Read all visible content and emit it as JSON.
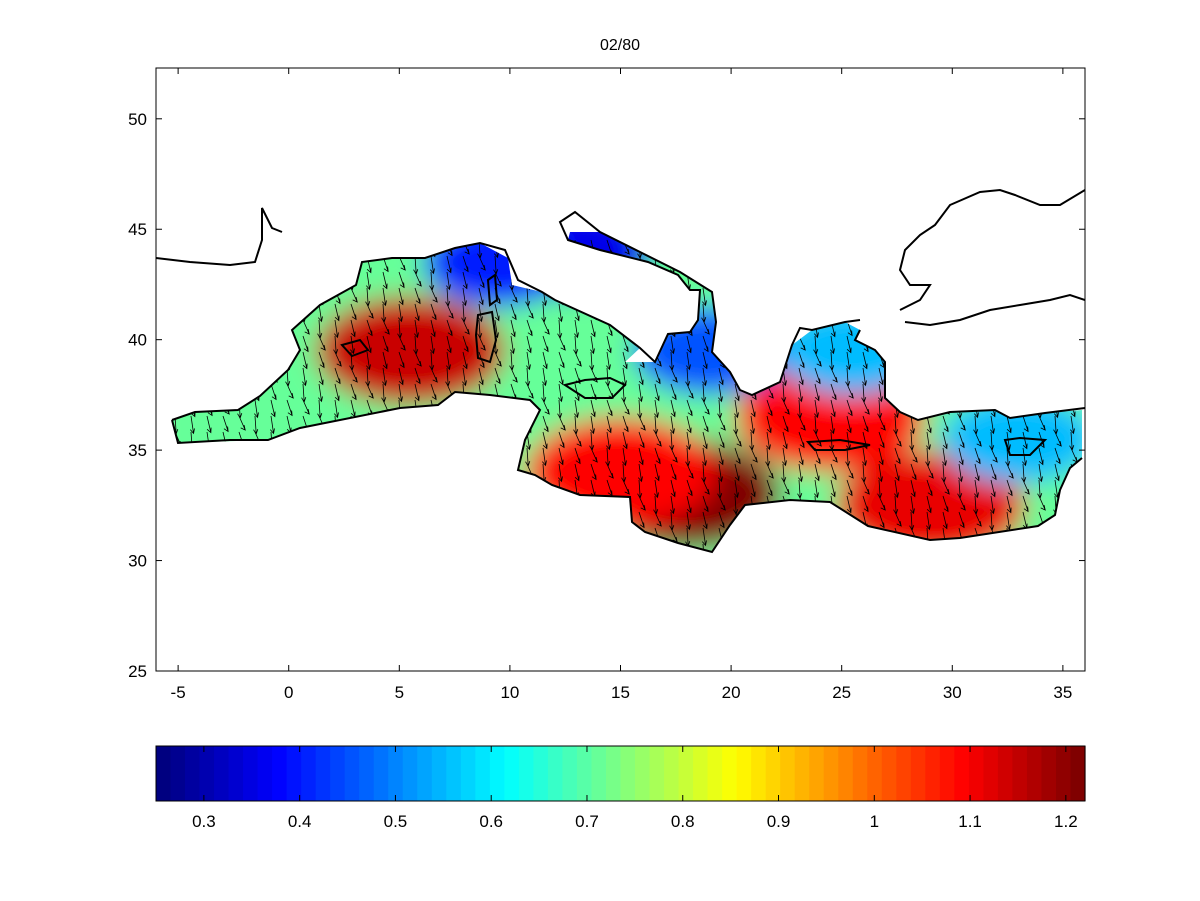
{
  "chart_data": [
    {
      "type": "heatmap",
      "title": "02/80",
      "xlabel": "",
      "ylabel": "",
      "xlim": [
        -6,
        36
      ],
      "ylim": [
        25,
        52.3
      ],
      "xticks": [
        -5,
        0,
        5,
        10,
        15,
        20,
        25,
        30,
        35
      ],
      "yticks": [
        25,
        30,
        35,
        40,
        45,
        50
      ],
      "xtick_labels": [
        "-5",
        "0",
        "5",
        "10",
        "15",
        "20",
        "25",
        "30",
        "35"
      ],
      "ytick_labels": [
        "25",
        "30",
        "35",
        "40",
        "45",
        "50"
      ],
      "overlay": "wind vectors (arrows) pointing mostly south/south-east",
      "field_hotspots": [
        {
          "lon": 5.5,
          "lat": 39.5,
          "value": 1.15
        },
        {
          "lon": 18.0,
          "lat": 33.0,
          "value": 1.22
        },
        {
          "lon": 15.0,
          "lat": 34.0,
          "value": 1.1
        },
        {
          "lon": 24.5,
          "lat": 36.5,
          "value": 1.1
        },
        {
          "lon": 29.0,
          "lat": 32.5,
          "value": 1.12
        },
        {
          "lon": 13.0,
          "lat": 44.0,
          "value": 0.35
        },
        {
          "lon": 9.5,
          "lat": 43.5,
          "value": 0.4
        },
        {
          "lon": 19.0,
          "lat": 39.5,
          "value": 0.45
        },
        {
          "lon": 25.5,
          "lat": 39.5,
          "value": 0.55
        },
        {
          "lon": 33.0,
          "lat": 35.5,
          "value": 0.55
        }
      ]
    },
    {
      "type": "colorbar",
      "clim": [
        0.25,
        1.22
      ],
      "ticks": [
        0.3,
        0.4,
        0.5,
        0.6,
        0.7,
        0.8,
        0.9,
        1,
        1.1,
        1.2
      ],
      "tick_labels": [
        "0.3",
        "0.4",
        "0.5",
        "0.6",
        "0.7",
        "0.8",
        "0.9",
        "1",
        "1.1",
        "1.2"
      ],
      "colormap": "jet"
    }
  ]
}
